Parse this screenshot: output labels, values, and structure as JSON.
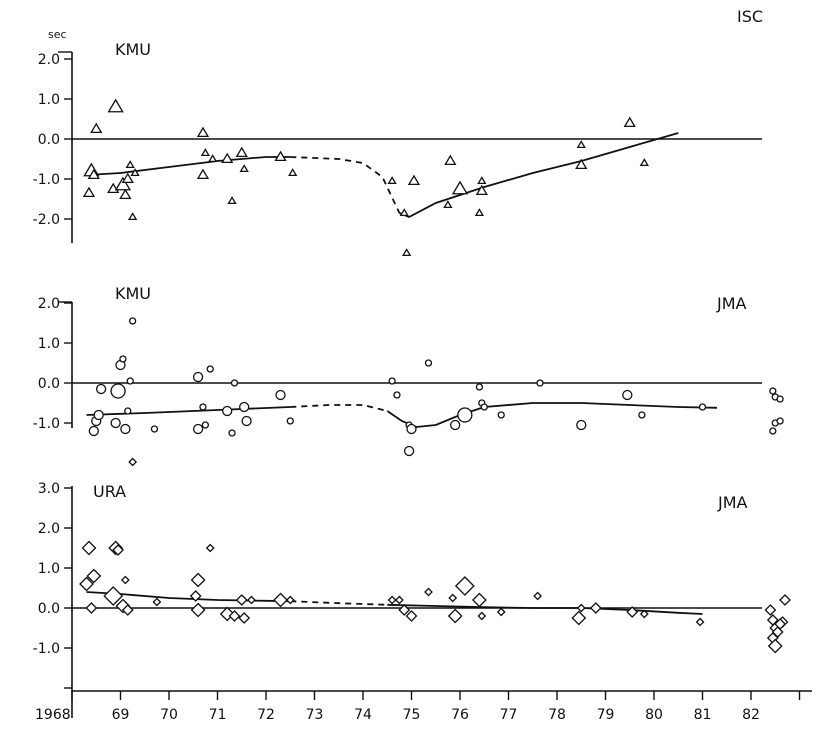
{
  "chart_data": [
    {
      "type": "scatter",
      "title": "",
      "station_label": "KMU",
      "source_label": "ISC",
      "unit_label": "sec",
      "marker": "triangle",
      "ylim": [
        -2.9,
        2.1
      ],
      "yticks": [
        2.0,
        1.0,
        0.0,
        -1.0,
        -2.0
      ],
      "ytick_labels": [
        "2.0",
        "1.0",
        "0.0",
        "-1.0",
        "-2.0"
      ],
      "points": [
        {
          "x": 1968.5,
          "y": 0.25,
          "s": 1
        },
        {
          "x": 1968.4,
          "y": -0.8,
          "s": 2
        },
        {
          "x": 1968.45,
          "y": -0.9,
          "s": 1
        },
        {
          "x": 1968.35,
          "y": -1.35,
          "s": 1
        },
        {
          "x": 1968.9,
          "y": 0.8,
          "s": 2
        },
        {
          "x": 1968.85,
          "y": -1.25,
          "s": 1
        },
        {
          "x": 1969.05,
          "y": -1.15,
          "s": 2
        },
        {
          "x": 1969.1,
          "y": -1.4,
          "s": 1
        },
        {
          "x": 1969.15,
          "y": -1.0,
          "s": 1
        },
        {
          "x": 1969.2,
          "y": -0.65,
          "s": 0
        },
        {
          "x": 1969.3,
          "y": -0.85,
          "s": 0
        },
        {
          "x": 1969.25,
          "y": -1.95,
          "s": 0
        },
        {
          "x": 1970.7,
          "y": 0.15,
          "s": 1
        },
        {
          "x": 1970.75,
          "y": -0.35,
          "s": 0
        },
        {
          "x": 1970.7,
          "y": -0.9,
          "s": 1
        },
        {
          "x": 1970.9,
          "y": -0.5,
          "s": 0
        },
        {
          "x": 1971.2,
          "y": -0.5,
          "s": 1
        },
        {
          "x": 1971.3,
          "y": -1.55,
          "s": 0
        },
        {
          "x": 1971.5,
          "y": -0.35,
          "s": 1
        },
        {
          "x": 1971.55,
          "y": -0.75,
          "s": 0
        },
        {
          "x": 1972.3,
          "y": -0.45,
          "s": 1
        },
        {
          "x": 1972.55,
          "y": -0.85,
          "s": 0
        },
        {
          "x": 1974.6,
          "y": -1.05,
          "s": 0
        },
        {
          "x": 1974.85,
          "y": -1.85,
          "s": 0
        },
        {
          "x": 1974.9,
          "y": -2.85,
          "s": 0
        },
        {
          "x": 1975.05,
          "y": -1.05,
          "s": 1
        },
        {
          "x": 1975.8,
          "y": -0.55,
          "s": 1
        },
        {
          "x": 1975.75,
          "y": -1.65,
          "s": 0
        },
        {
          "x": 1976.0,
          "y": -1.25,
          "s": 2
        },
        {
          "x": 1976.45,
          "y": -1.05,
          "s": 0
        },
        {
          "x": 1976.45,
          "y": -1.3,
          "s": 1
        },
        {
          "x": 1976.4,
          "y": -1.85,
          "s": 0
        },
        {
          "x": 1978.5,
          "y": -0.15,
          "s": 0
        },
        {
          "x": 1978.5,
          "y": -0.65,
          "s": 1
        },
        {
          "x": 1979.5,
          "y": 0.4,
          "s": 1
        },
        {
          "x": 1979.8,
          "y": -0.6,
          "s": 0
        }
      ],
      "trend_solid": [
        [
          [
            1968.3,
            -0.9
          ],
          [
            1969.0,
            -0.85
          ],
          [
            1970.0,
            -0.7
          ],
          [
            1971.0,
            -0.55
          ],
          [
            1972.0,
            -0.45
          ],
          [
            1972.5,
            -0.45
          ]
        ],
        [
          [
            1974.75,
            -1.85
          ],
          [
            1974.95,
            -1.95
          ],
          [
            1975.5,
            -1.6
          ],
          [
            1976.5,
            -1.2
          ],
          [
            1977.5,
            -0.85
          ],
          [
            1978.5,
            -0.55
          ],
          [
            1979.5,
            -0.2
          ],
          [
            1980.5,
            0.15
          ]
        ]
      ],
      "trend_dashed": [
        [
          [
            1972.5,
            -0.45
          ],
          [
            1973.5,
            -0.5
          ],
          [
            1974.0,
            -0.6
          ],
          [
            1974.4,
            -0.95
          ],
          [
            1974.75,
            -1.85
          ]
        ]
      ]
    },
    {
      "type": "scatter",
      "title": "",
      "station_label": "KMU",
      "source_label": "JMA",
      "marker": "circle",
      "ylim": [
        -1.4,
        2.1
      ],
      "yticks": [
        2.0,
        1.0,
        0.0,
        -1.0
      ],
      "ytick_labels": [
        "2.0",
        "1.0",
        "0.0",
        "-1.0"
      ],
      "points": [
        {
          "x": 1968.45,
          "y": -1.2,
          "s": 1
        },
        {
          "x": 1968.5,
          "y": -0.95,
          "s": 1
        },
        {
          "x": 1968.55,
          "y": -0.8,
          "s": 1
        },
        {
          "x": 1968.6,
          "y": -0.15,
          "s": 1
        },
        {
          "x": 1968.9,
          "y": -1.0,
          "s": 1
        },
        {
          "x": 1968.95,
          "y": -0.2,
          "s": 2
        },
        {
          "x": 1969.0,
          "y": 0.45,
          "s": 1
        },
        {
          "x": 1969.05,
          "y": 0.6,
          "s": 0
        },
        {
          "x": 1969.1,
          "y": -1.15,
          "s": 1
        },
        {
          "x": 1969.15,
          "y": -0.7,
          "s": 0
        },
        {
          "x": 1969.2,
          "y": 0.05,
          "s": 0
        },
        {
          "x": 1969.25,
          "y": 1.55,
          "s": 0
        },
        {
          "x": 1969.7,
          "y": -1.15,
          "s": 0
        },
        {
          "x": 1970.6,
          "y": 0.15,
          "s": 1
        },
        {
          "x": 1970.85,
          "y": 0.35,
          "s": 0
        },
        {
          "x": 1970.7,
          "y": -0.6,
          "s": 0
        },
        {
          "x": 1970.6,
          "y": -1.15,
          "s": 1
        },
        {
          "x": 1970.75,
          "y": -1.05,
          "s": 0
        },
        {
          "x": 1971.2,
          "y": -0.7,
          "s": 1
        },
        {
          "x": 1971.3,
          "y": -1.25,
          "s": 0
        },
        {
          "x": 1971.35,
          "y": 0.0,
          "s": 0
        },
        {
          "x": 1971.55,
          "y": -0.6,
          "s": 1
        },
        {
          "x": 1971.6,
          "y": -0.95,
          "s": 1
        },
        {
          "x": 1972.3,
          "y": -0.3,
          "s": 1
        },
        {
          "x": 1972.5,
          "y": -0.95,
          "s": 0
        },
        {
          "x": 1974.6,
          "y": 0.05,
          "s": 0
        },
        {
          "x": 1974.7,
          "y": -0.3,
          "s": 0
        },
        {
          "x": 1974.95,
          "y": -1.05,
          "s": 0
        },
        {
          "x": 1975.0,
          "y": -1.15,
          "s": 1
        },
        {
          "x": 1974.95,
          "y": -1.7,
          "s": 1
        },
        {
          "x": 1975.35,
          "y": 0.5,
          "s": 0
        },
        {
          "x": 1975.9,
          "y": -1.05,
          "s": 1
        },
        {
          "x": 1976.1,
          "y": -0.8,
          "s": 2
        },
        {
          "x": 1976.4,
          "y": -0.1,
          "s": 0
        },
        {
          "x": 1976.45,
          "y": -0.5,
          "s": 0
        },
        {
          "x": 1976.5,
          "y": -0.6,
          "s": 0
        },
        {
          "x": 1976.85,
          "y": -0.8,
          "s": 0
        },
        {
          "x": 1977.65,
          "y": 0.0,
          "s": 0
        },
        {
          "x": 1978.5,
          "y": -1.05,
          "s": 1
        },
        {
          "x": 1979.45,
          "y": -0.3,
          "s": 1
        },
        {
          "x": 1979.75,
          "y": -0.8,
          "s": 0
        },
        {
          "x": 1981.0,
          "y": -0.6,
          "s": 0
        },
        {
          "x": 1982.45,
          "y": -0.2,
          "s": 0
        },
        {
          "x": 1982.5,
          "y": -0.35,
          "s": 0
        },
        {
          "x": 1982.6,
          "y": -0.4,
          "s": 0
        },
        {
          "x": 1982.5,
          "y": -1.0,
          "s": 0
        },
        {
          "x": 1982.45,
          "y": -1.2,
          "s": 0
        },
        {
          "x": 1982.6,
          "y": -0.95,
          "s": 0
        }
      ],
      "trend_solid": [
        [
          [
            1968.3,
            -0.8
          ],
          [
            1969.5,
            -0.75
          ],
          [
            1970.5,
            -0.7
          ],
          [
            1971.5,
            -0.65
          ],
          [
            1972.5,
            -0.6
          ]
        ],
        [
          [
            1974.5,
            -0.7
          ],
          [
            1974.8,
            -0.95
          ],
          [
            1975.1,
            -1.1
          ],
          [
            1975.5,
            -1.05
          ],
          [
            1976.0,
            -0.8
          ],
          [
            1976.5,
            -0.6
          ],
          [
            1977.5,
            -0.5
          ],
          [
            1978.5,
            -0.5
          ],
          [
            1979.5,
            -0.55
          ],
          [
            1980.5,
            -0.6
          ],
          [
            1981.3,
            -0.62
          ]
        ]
      ],
      "trend_dashed": [
        [
          [
            1972.5,
            -0.6
          ],
          [
            1973.3,
            -0.55
          ],
          [
            1974.0,
            -0.55
          ],
          [
            1974.5,
            -0.7
          ]
        ]
      ]
    },
    {
      "type": "scatter",
      "title": "",
      "station_label": "URA",
      "source_label": "JMA",
      "marker": "diamond",
      "ylim": [
        -2.0,
        3.7
      ],
      "yticks": [
        3.0,
        2.0,
        1.0,
        0.0,
        -1.0
      ],
      "ytick_labels": [
        "3.0",
        "2.0",
        "1.0",
        "0.0",
        "-1.0"
      ],
      "extra_ticks": [
        -2.0
      ],
      "points": [
        {
          "x": 1968.35,
          "y": 1.5,
          "s": 2
        },
        {
          "x": 1968.3,
          "y": 0.6,
          "s": 2
        },
        {
          "x": 1968.45,
          "y": 0.8,
          "s": 2
        },
        {
          "x": 1968.4,
          "y": 0.0,
          "s": 1
        },
        {
          "x": 1968.85,
          "y": 0.3,
          "s": 3
        },
        {
          "x": 1968.9,
          "y": 1.5,
          "s": 2
        },
        {
          "x": 1968.95,
          "y": 1.45,
          "s": 1
        },
        {
          "x": 1969.05,
          "y": 0.05,
          "s": 2
        },
        {
          "x": 1969.1,
          "y": 0.7,
          "s": 0
        },
        {
          "x": 1969.15,
          "y": -0.05,
          "s": 1
        },
        {
          "x": 1969.25,
          "y": 3.65,
          "s": 0
        },
        {
          "x": 1969.75,
          "y": 0.15,
          "s": 0
        },
        {
          "x": 1970.6,
          "y": 0.7,
          "s": 2
        },
        {
          "x": 1970.55,
          "y": 0.3,
          "s": 1
        },
        {
          "x": 1970.6,
          "y": -0.05,
          "s": 2
        },
        {
          "x": 1970.85,
          "y": 1.5,
          "s": 0
        },
        {
          "x": 1971.2,
          "y": -0.15,
          "s": 2
        },
        {
          "x": 1971.35,
          "y": -0.2,
          "s": 1
        },
        {
          "x": 1971.5,
          "y": 0.2,
          "s": 1
        },
        {
          "x": 1971.55,
          "y": -0.25,
          "s": 1
        },
        {
          "x": 1971.7,
          "y": 0.2,
          "s": 0
        },
        {
          "x": 1972.3,
          "y": 0.2,
          "s": 2
        },
        {
          "x": 1972.5,
          "y": 0.2,
          "s": 0
        },
        {
          "x": 1974.6,
          "y": 0.2,
          "s": 0
        },
        {
          "x": 1974.75,
          "y": 0.2,
          "s": 0
        },
        {
          "x": 1974.85,
          "y": -0.05,
          "s": 1
        },
        {
          "x": 1975.0,
          "y": -0.2,
          "s": 1
        },
        {
          "x": 1975.35,
          "y": 0.4,
          "s": 0
        },
        {
          "x": 1975.85,
          "y": 0.25,
          "s": 0
        },
        {
          "x": 1975.9,
          "y": -0.2,
          "s": 2
        },
        {
          "x": 1976.1,
          "y": 0.55,
          "s": 3
        },
        {
          "x": 1976.4,
          "y": 0.2,
          "s": 2
        },
        {
          "x": 1976.45,
          "y": -0.2,
          "s": 0
        },
        {
          "x": 1976.85,
          "y": -0.1,
          "s": 0
        },
        {
          "x": 1977.6,
          "y": 0.3,
          "s": 0
        },
        {
          "x": 1978.45,
          "y": -0.25,
          "s": 2
        },
        {
          "x": 1978.5,
          "y": 0.0,
          "s": 0
        },
        {
          "x": 1978.8,
          "y": 0.0,
          "s": 1
        },
        {
          "x": 1979.55,
          "y": -0.1,
          "s": 1
        },
        {
          "x": 1979.8,
          "y": -0.15,
          "s": 0
        },
        {
          "x": 1980.95,
          "y": -0.35,
          "s": 0
        },
        {
          "x": 1982.4,
          "y": -0.05,
          "s": 1
        },
        {
          "x": 1982.45,
          "y": -0.3,
          "s": 1
        },
        {
          "x": 1982.5,
          "y": -0.5,
          "s": 1
        },
        {
          "x": 1982.55,
          "y": -0.6,
          "s": 1
        },
        {
          "x": 1982.65,
          "y": -0.35,
          "s": 1
        },
        {
          "x": 1982.7,
          "y": 0.2,
          "s": 1
        },
        {
          "x": 1982.45,
          "y": -0.75,
          "s": 1
        },
        {
          "x": 1982.5,
          "y": -0.95,
          "s": 2
        },
        {
          "x": 1982.6,
          "y": -0.4,
          "s": 1
        }
      ],
      "trend_solid": [
        [
          [
            1968.3,
            0.4
          ],
          [
            1969.0,
            0.35
          ],
          [
            1970.0,
            0.25
          ],
          [
            1971.0,
            0.2
          ],
          [
            1972.0,
            0.18
          ],
          [
            1972.5,
            0.17
          ]
        ],
        [
          [
            1974.5,
            0.08
          ],
          [
            1975.5,
            0.05
          ],
          [
            1976.5,
            0.02
          ],
          [
            1977.5,
            0.0
          ],
          [
            1978.5,
            0.0
          ],
          [
            1979.5,
            -0.05
          ],
          [
            1980.5,
            -0.12
          ],
          [
            1981.0,
            -0.15
          ]
        ]
      ],
      "trend_dashed": [
        [
          [
            1972.5,
            0.17
          ],
          [
            1973.5,
            0.12
          ],
          [
            1974.5,
            0.08
          ]
        ]
      ]
    }
  ],
  "xaxis": {
    "ticks": [
      1968,
      1969,
      1970,
      1971,
      1972,
      1973,
      1974,
      1975,
      1976,
      1977,
      1978,
      1979,
      1980,
      1981,
      1982
    ],
    "tick_labels": [
      "1968",
      "69",
      "70",
      "71",
      "72",
      "73",
      "74",
      "75",
      "76",
      "77",
      "78",
      "79",
      "80",
      "81",
      "82"
    ],
    "range": [
      1968,
      1983
    ]
  }
}
